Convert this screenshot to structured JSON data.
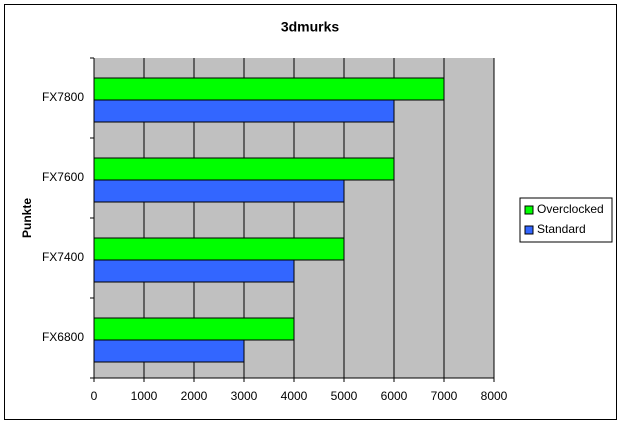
{
  "chart_data": {
    "type": "barh",
    "title": "3dmurks",
    "y_label": "Punkte",
    "categories": [
      "FX6800",
      "FX7400",
      "FX7600",
      "FX7800"
    ],
    "series": [
      {
        "name": "Overclocked",
        "color": "#00ff00",
        "values": [
          4000,
          5000,
          6000,
          7000
        ]
      },
      {
        "name": "Standard",
        "color": "#3366ff",
        "values": [
          3000,
          4000,
          5000,
          6000
        ]
      }
    ],
    "xlim": [
      0,
      8000
    ],
    "xticks": [
      0,
      1000,
      2000,
      3000,
      4000,
      5000,
      6000,
      7000,
      8000
    ],
    "grid": true,
    "legend": "right"
  }
}
